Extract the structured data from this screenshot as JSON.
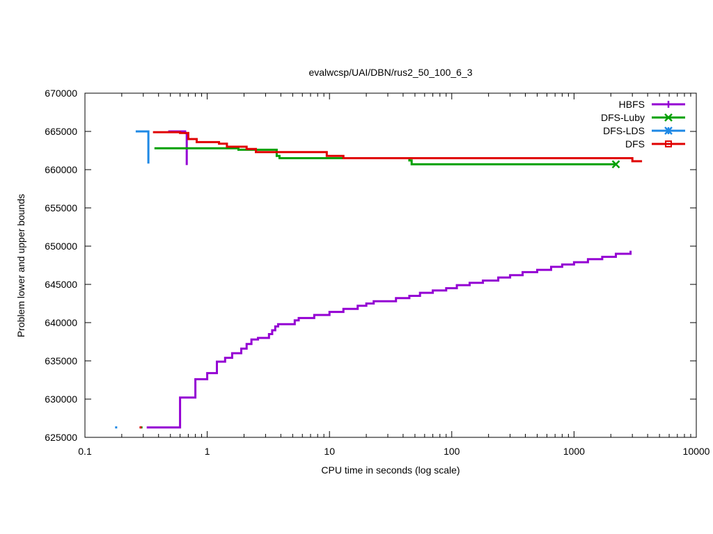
{
  "chart_data": {
    "type": "line",
    "title": "evalwcsp/UAI/DBN/rus2_50_100_6_3",
    "xlabel": "CPU time in seconds (log scale)",
    "ylabel": "Problem lower and upper bounds",
    "xscale": "log",
    "xlim": [
      0.1,
      10000
    ],
    "ylim": [
      625000,
      670000
    ],
    "xticks": [
      0.1,
      1,
      10,
      100,
      1000,
      10000
    ],
    "xtick_labels": [
      "0.1",
      "1",
      "10",
      "100",
      "1000",
      "10000"
    ],
    "yticks": [
      625000,
      630000,
      635000,
      640000,
      645000,
      650000,
      655000,
      660000,
      665000,
      670000
    ],
    "ytick_labels": [
      "625000",
      "630000",
      "635000",
      "640000",
      "645000",
      "650000",
      "655000",
      "660000",
      "665000",
      "670000"
    ],
    "grid": false,
    "legend_position": "top-right",
    "series": [
      {
        "name": "HBFS",
        "color": "#9400d3",
        "marker": "plus",
        "upper": [
          [
            0.48,
            665000
          ],
          [
            0.66,
            665000
          ],
          [
            0.66,
            664800
          ],
          [
            0.68,
            664800
          ]
        ],
        "drop": [
          [
            0.68,
            664800
          ],
          [
            0.68,
            660600
          ]
        ],
        "lower": [
          [
            0.32,
            626300
          ],
          [
            0.6,
            626300
          ],
          [
            0.6,
            630200
          ],
          [
            0.8,
            630200
          ],
          [
            0.8,
            632600
          ],
          [
            1.0,
            632600
          ],
          [
            1.0,
            633400
          ],
          [
            1.2,
            633400
          ],
          [
            1.2,
            634900
          ],
          [
            1.4,
            634900
          ],
          [
            1.4,
            635400
          ],
          [
            1.6,
            635400
          ],
          [
            1.6,
            636000
          ],
          [
            1.9,
            636000
          ],
          [
            1.9,
            636600
          ],
          [
            2.1,
            636600
          ],
          [
            2.1,
            637200
          ],
          [
            2.3,
            637200
          ],
          [
            2.3,
            637800
          ],
          [
            2.6,
            637800
          ],
          [
            2.6,
            638000
          ],
          [
            3.2,
            638000
          ],
          [
            3.2,
            638500
          ],
          [
            3.4,
            638500
          ],
          [
            3.4,
            639000
          ],
          [
            3.6,
            639000
          ],
          [
            3.6,
            639500
          ],
          [
            3.8,
            639500
          ],
          [
            3.8,
            639800
          ],
          [
            5.2,
            639800
          ],
          [
            5.2,
            640300
          ],
          [
            5.6,
            640300
          ],
          [
            5.6,
            640600
          ],
          [
            7.5,
            640600
          ],
          [
            7.5,
            641000
          ],
          [
            10,
            641000
          ],
          [
            10,
            641400
          ],
          [
            13,
            641400
          ],
          [
            13,
            641800
          ],
          [
            17,
            641800
          ],
          [
            17,
            642200
          ],
          [
            20,
            642200
          ],
          [
            20,
            642500
          ],
          [
            23,
            642500
          ],
          [
            23,
            642800
          ],
          [
            35,
            642800
          ],
          [
            35,
            643200
          ],
          [
            45,
            643200
          ],
          [
            45,
            643500
          ],
          [
            55,
            643500
          ],
          [
            55,
            643900
          ],
          [
            70,
            643900
          ],
          [
            70,
            644200
          ],
          [
            90,
            644200
          ],
          [
            90,
            644500
          ],
          [
            110,
            644500
          ],
          [
            110,
            644900
          ],
          [
            140,
            644900
          ],
          [
            140,
            645200
          ],
          [
            180,
            645200
          ],
          [
            180,
            645500
          ],
          [
            240,
            645500
          ],
          [
            240,
            645900
          ],
          [
            300,
            645900
          ],
          [
            300,
            646200
          ],
          [
            380,
            646200
          ],
          [
            380,
            646600
          ],
          [
            500,
            646600
          ],
          [
            500,
            646900
          ],
          [
            650,
            646900
          ],
          [
            650,
            647300
          ],
          [
            800,
            647300
          ],
          [
            800,
            647600
          ],
          [
            1000,
            647600
          ],
          [
            1000,
            647900
          ],
          [
            1300,
            647900
          ],
          [
            1300,
            648300
          ],
          [
            1700,
            648300
          ],
          [
            1700,
            648600
          ],
          [
            2200,
            648600
          ],
          [
            2200,
            649000
          ],
          [
            2900,
            649000
          ],
          [
            2900,
            649400
          ]
        ]
      },
      {
        "name": "DFS-Luby",
        "color": "#00a000",
        "marker": "cross",
        "upper": [
          [
            0.37,
            662800
          ],
          [
            1.8,
            662800
          ],
          [
            1.8,
            662600
          ],
          [
            3.7,
            662600
          ],
          [
            3.7,
            661800
          ],
          [
            3.9,
            661800
          ],
          [
            3.9,
            661500
          ],
          [
            45,
            661500
          ],
          [
            45,
            661200
          ],
          [
            47,
            661200
          ],
          [
            47,
            660700
          ],
          [
            2200,
            660700
          ]
        ]
      },
      {
        "name": "DFS-LDS",
        "color": "#1e88e5",
        "marker": "star",
        "upper": [
          [
            0.26,
            665000
          ],
          [
            0.33,
            665000
          ],
          [
            0.33,
            660800
          ]
        ]
      },
      {
        "name": "DFS",
        "color": "#e00000",
        "marker": "square",
        "upper": [
          [
            0.36,
            664900
          ],
          [
            0.6,
            664900
          ],
          [
            0.6,
            664800
          ],
          [
            0.7,
            664800
          ],
          [
            0.7,
            664000
          ],
          [
            0.82,
            664000
          ],
          [
            0.82,
            663600
          ],
          [
            1.25,
            663600
          ],
          [
            1.25,
            663400
          ],
          [
            1.45,
            663400
          ],
          [
            1.45,
            663000
          ],
          [
            2.1,
            663000
          ],
          [
            2.1,
            662700
          ],
          [
            2.5,
            662700
          ],
          [
            2.5,
            662300
          ],
          [
            9.5,
            662300
          ],
          [
            9.5,
            661800
          ],
          [
            13,
            661800
          ],
          [
            13,
            661500
          ],
          [
            3000,
            661500
          ],
          [
            3000,
            661100
          ],
          [
            3600,
            661100
          ]
        ]
      }
    ],
    "stray_points": [
      {
        "name": "DFS-LDS",
        "x": 0.18,
        "y": 626300
      },
      {
        "name": "DFS-Luby",
        "x": 0.29,
        "y": 626300
      },
      {
        "name": "DFS",
        "x": 0.285,
        "y": 626300
      }
    ],
    "end_markers": [
      {
        "name": "DFS-Luby",
        "x": 2200,
        "y": 660700
      }
    ]
  }
}
